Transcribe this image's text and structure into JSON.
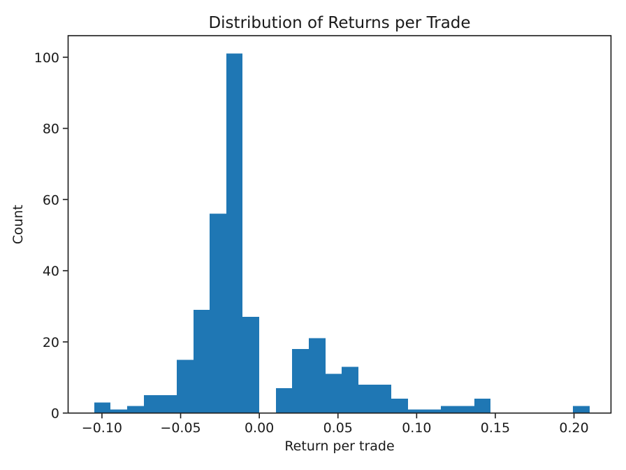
{
  "chart_data": {
    "type": "bar",
    "chart_kind": "histogram",
    "title": "Distribution of Returns per Trade",
    "xlabel": "Return per trade",
    "ylabel": "Count",
    "bar_color": "#1f77b4",
    "axis_color": "#1a1a1a",
    "text_color": "#1a1a1a",
    "background_color": "#ffffff",
    "grid": false,
    "legend": false,
    "bin_start": -0.105,
    "bin_width": 0.0105,
    "counts": [
      3,
      1,
      2,
      5,
      5,
      15,
      29,
      56,
      101,
      27,
      0,
      7,
      18,
      21,
      11,
      13,
      8,
      8,
      4,
      1,
      1,
      2,
      2,
      4,
      0,
      0,
      0,
      0,
      0,
      2
    ],
    "total_count": 346,
    "xlim": [
      -0.1215,
      0.2235
    ],
    "ylim": [
      0,
      106.05
    ],
    "x_ticks": [
      {
        "value": -0.1,
        "label": "−0.10"
      },
      {
        "value": -0.05,
        "label": "−0.05"
      },
      {
        "value": 0.0,
        "label": "0.00"
      },
      {
        "value": 0.05,
        "label": "0.05"
      },
      {
        "value": 0.1,
        "label": "0.10"
      },
      {
        "value": 0.15,
        "label": "0.15"
      },
      {
        "value": 0.2,
        "label": "0.20"
      }
    ],
    "y_ticks": [
      {
        "value": 0,
        "label": "0"
      },
      {
        "value": 20,
        "label": "20"
      },
      {
        "value": 40,
        "label": "40"
      },
      {
        "value": 60,
        "label": "60"
      },
      {
        "value": 80,
        "label": "80"
      },
      {
        "value": 100,
        "label": "100"
      }
    ]
  }
}
